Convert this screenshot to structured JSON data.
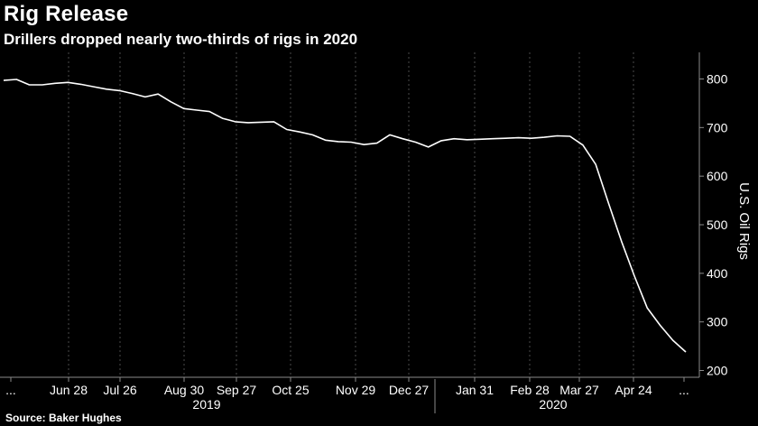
{
  "header": {
    "title": "Rig Release",
    "subtitle": "Drillers dropped nearly two-thirds of rigs in 2020"
  },
  "footer": {
    "source": "Source: Baker Hughes"
  },
  "chart_data": {
    "type": "line",
    "title": "Rig Release",
    "subtitle": "Drillers dropped nearly two-thirds of rigs in 2020",
    "xlabel": "",
    "ylabel": "U.S. Oil Rigs",
    "ylim": [
      190,
      820
    ],
    "yticks": [
      200,
      300,
      400,
      500,
      600,
      700,
      800
    ],
    "grid": "vertical",
    "x_tick_labels": [
      "...",
      "Jun 28",
      "Jul 26",
      "Aug 30",
      "Sep 27",
      "Oct 25",
      "Nov 29",
      "Dec 27",
      "Jan 31",
      "Feb 28",
      "Mar 27",
      "Apr 24",
      "..."
    ],
    "year_labels": [
      "2019",
      "2020"
    ],
    "series": [
      {
        "values": [
          797,
          799,
          788,
          788,
          791,
          793,
          789,
          784,
          779,
          776,
          770,
          763,
          769,
          753,
          739,
          736,
          733,
          719,
          712,
          710,
          711,
          712,
          696,
          691,
          685,
          674,
          671,
          670,
          665,
          668,
          685,
          677,
          670,
          660,
          673,
          677,
          675,
          676,
          677,
          678,
          679,
          678,
          680,
          683,
          682,
          664,
          624,
          544,
          466,
          395,
          329,
          293,
          262,
          238
        ]
      }
    ]
  }
}
